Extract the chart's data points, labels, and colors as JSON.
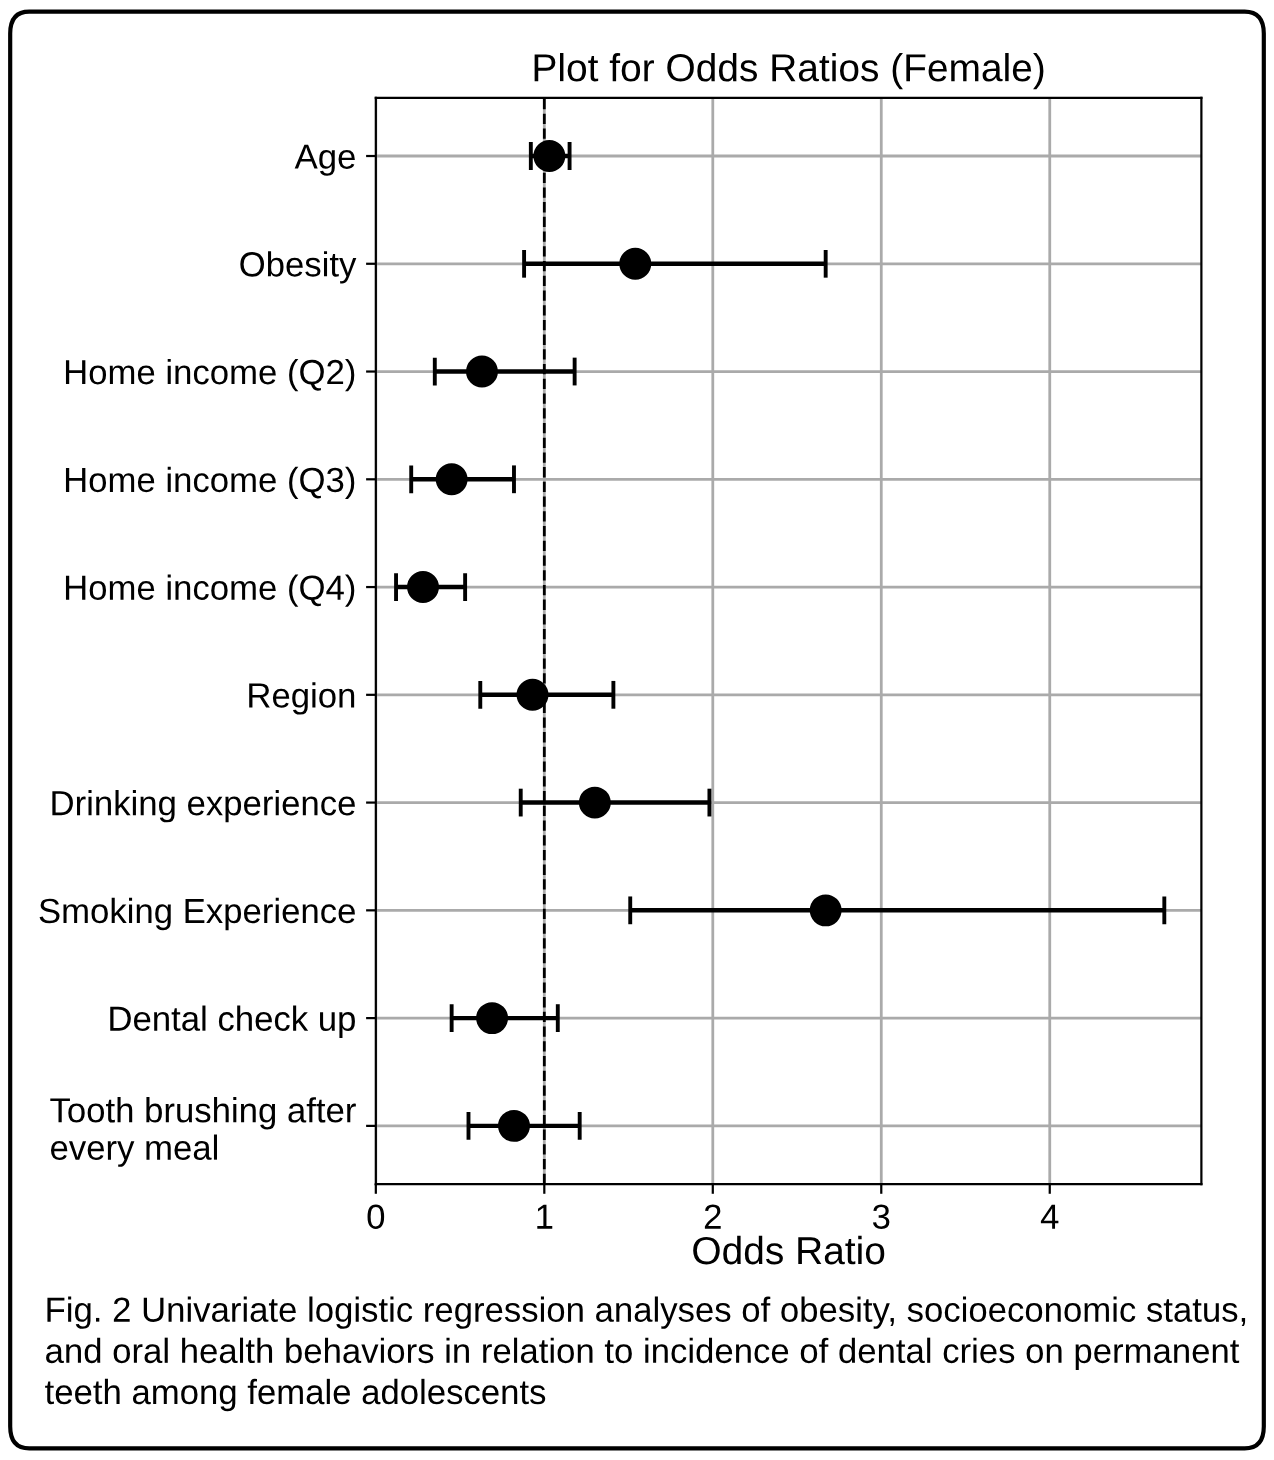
{
  "chart_data": {
    "type": "scatter",
    "orientation": "horizontal",
    "title": "Plot for Odds Ratios (Female)",
    "xlabel": "Odds Ratio",
    "categories": [
      "Age",
      "Obesity",
      "Home income (Q2)",
      "Home income (Q3)",
      "Home income (Q4)",
      "Region",
      "Drinking experience",
      "Smoking Experience",
      "Dental check up",
      "Tooth brushing after\nevery meal"
    ],
    "series": [
      {
        "color": "#000000",
        "values": [
          1.03,
          1.54,
          0.63,
          0.45,
          0.28,
          0.93,
          1.3,
          2.67,
          0.69,
          0.82
        ],
        "errors": [
          [
            0.92,
            1.15
          ],
          [
            0.88,
            2.67
          ],
          [
            0.35,
            1.18
          ],
          [
            0.21,
            0.82
          ],
          [
            0.12,
            0.53
          ],
          [
            0.62,
            1.41
          ],
          [
            0.86,
            1.98
          ],
          [
            1.51,
            4.68
          ],
          [
            0.45,
            1.08
          ],
          [
            0.55,
            1.21
          ]
        ]
      }
    ],
    "xlim": [
      0,
      4.9
    ],
    "xticks": [
      0,
      1,
      2,
      3,
      4
    ],
    "ref_lines": [
      {
        "axis": "x",
        "value": 1,
        "color": "#000000",
        "line_style": "dashed"
      }
    ],
    "grid": true,
    "marker": "circle",
    "annotations": [
      "Fig. 2 Univariate logistic regression analyses of obesity, socioeconomic status, and oral health behaviors in relation to incidence of dental cries on permanent teeth among female adolescents"
    ]
  }
}
